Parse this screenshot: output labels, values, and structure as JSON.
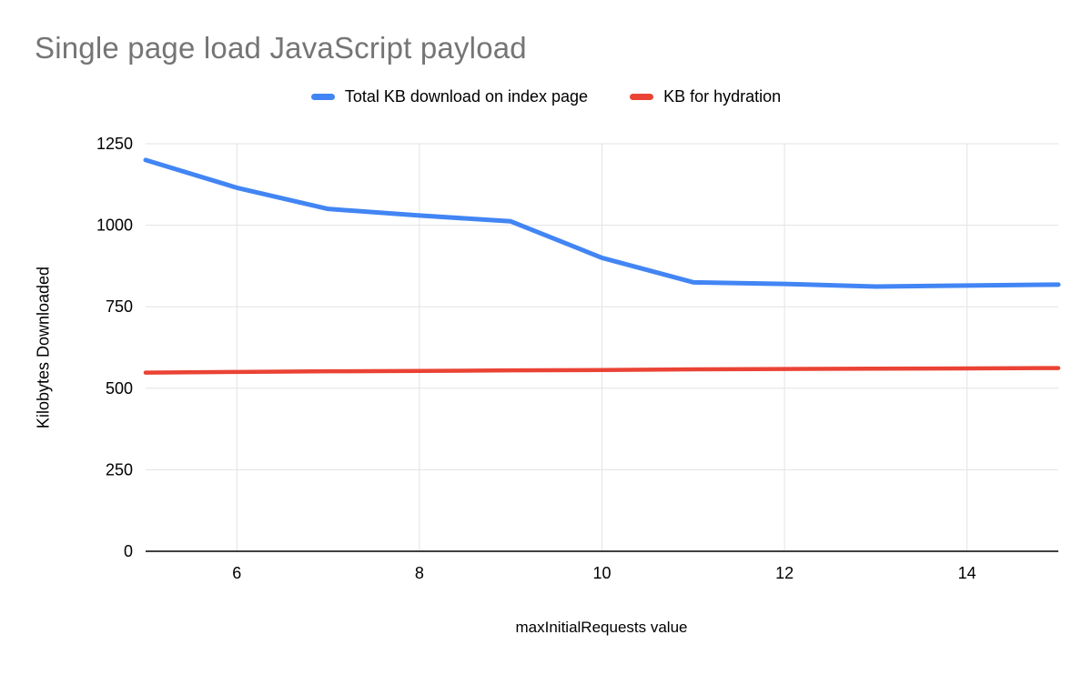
{
  "chart_data": {
    "type": "line",
    "title": "Single page load JavaScript payload",
    "xlabel": "maxInitialRequests value",
    "ylabel": "Kilobytes Downloaded",
    "x": [
      5,
      6,
      7,
      8,
      9,
      10,
      11,
      12,
      13,
      14,
      15
    ],
    "series": [
      {
        "name": "Total KB download on index page",
        "color": "#4285f4",
        "values": [
          1200,
          1115,
          1050,
          1030,
          1012,
          900,
          825,
          820,
          812,
          815,
          818
        ]
      },
      {
        "name": "KB for hydration",
        "color": "#ea4335",
        "values": [
          548,
          550,
          552,
          553,
          555,
          556,
          558,
          559,
          560,
          561,
          562
        ]
      }
    ],
    "xlim": [
      5,
      15
    ],
    "ylim": [
      0,
      1250
    ],
    "x_ticks": [
      6,
      8,
      10,
      12,
      14
    ],
    "y_ticks": [
      0,
      250,
      500,
      750,
      1000,
      1250
    ],
    "grid": true,
    "legend_position": "top",
    "colors": {
      "grid": "#e3e3e3",
      "axis": "#000000",
      "title": "#757575",
      "tick_label": "#000000"
    }
  }
}
